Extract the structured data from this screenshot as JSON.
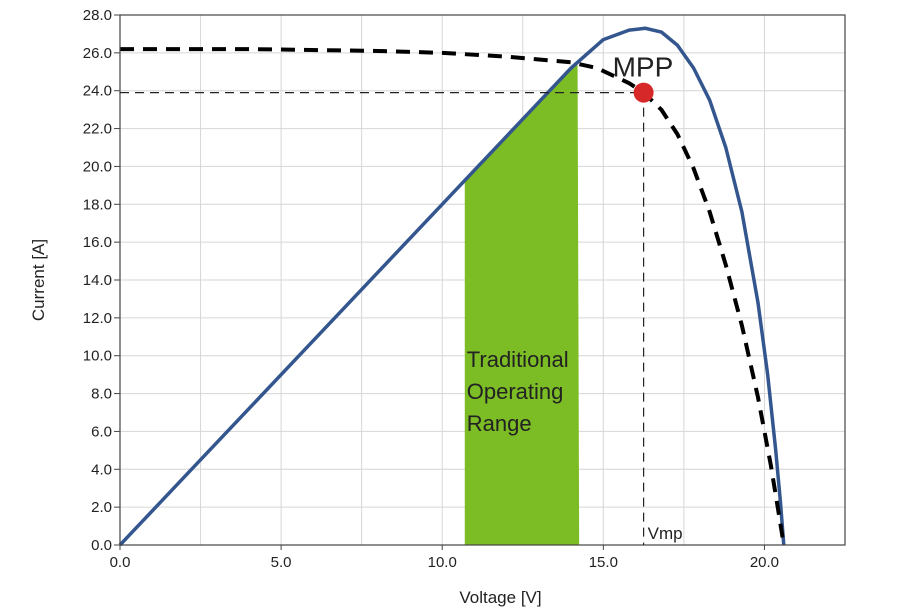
{
  "chart_data": {
    "type": "line",
    "title": "",
    "xlabel": "Voltage [V]",
    "ylabel": "Current [A]",
    "xlim": [
      0,
      22.5
    ],
    "ylim": [
      0,
      28
    ],
    "grid": true,
    "x_ticks": [
      {
        "value": 0,
        "label": "0.0"
      },
      {
        "value": 5,
        "label": "5.0"
      },
      {
        "value": 10,
        "label": "10.0"
      },
      {
        "value": 15,
        "label": "15.0"
      },
      {
        "value": 20,
        "label": "20.0"
      }
    ],
    "y_ticks": [
      {
        "value": 0,
        "label": "0.0"
      },
      {
        "value": 2,
        "label": "2.0"
      },
      {
        "value": 4,
        "label": "4.0"
      },
      {
        "value": 6,
        "label": "6.0"
      },
      {
        "value": 8,
        "label": "8.0"
      },
      {
        "value": 10,
        "label": "10.0"
      },
      {
        "value": 12,
        "label": "12.0"
      },
      {
        "value": 14,
        "label": "14.0"
      },
      {
        "value": 16,
        "label": "16.0"
      },
      {
        "value": 18,
        "label": "18.0"
      },
      {
        "value": 20,
        "label": "20.0"
      },
      {
        "value": 22,
        "label": "22.0"
      },
      {
        "value": 24,
        "label": "24.0"
      },
      {
        "value": 26,
        "label": "26.0"
      },
      {
        "value": 28,
        "label": "28.0"
      }
    ],
    "series": [
      {
        "style": "solid",
        "color": "#34568f",
        "points": [
          [
            0,
            0
          ],
          [
            2,
            3.6
          ],
          [
            4,
            7.2
          ],
          [
            6,
            10.8
          ],
          [
            8,
            14.4
          ],
          [
            10,
            18
          ],
          [
            11,
            19.8
          ],
          [
            12,
            21.6
          ],
          [
            13,
            23.4
          ],
          [
            14,
            25.2
          ],
          [
            15,
            26.7
          ],
          [
            15.8,
            27.2
          ],
          [
            16.3,
            27.3
          ],
          [
            16.8,
            27.1
          ],
          [
            17.3,
            26.4
          ],
          [
            17.8,
            25.2
          ],
          [
            18.3,
            23.5
          ],
          [
            18.8,
            21
          ],
          [
            19.3,
            17.6
          ],
          [
            19.8,
            12.8
          ],
          [
            20.1,
            9
          ],
          [
            20.35,
            5
          ],
          [
            20.5,
            2.2
          ],
          [
            20.6,
            0
          ]
        ]
      },
      {
        "style": "dashed",
        "color": "#000000",
        "points": [
          [
            0,
            26.2
          ],
          [
            4,
            26.2
          ],
          [
            8,
            26.1
          ],
          [
            10,
            26.0
          ],
          [
            12,
            25.8
          ],
          [
            13,
            25.65
          ],
          [
            14,
            25.5
          ],
          [
            14.8,
            25.2
          ],
          [
            15.3,
            24.8
          ],
          [
            15.8,
            24.4
          ],
          [
            16.25,
            23.9
          ],
          [
            16.8,
            23
          ],
          [
            17.3,
            21.7
          ],
          [
            17.8,
            19.9
          ],
          [
            18.3,
            17.6
          ],
          [
            18.8,
            14.8
          ],
          [
            19.3,
            11.6
          ],
          [
            19.8,
            7.8
          ],
          [
            20.2,
            4.2
          ],
          [
            20.45,
            1.6
          ],
          [
            20.6,
            0
          ]
        ]
      }
    ],
    "shaded_region": {
      "x_start": 10.7,
      "x_end": 14.25,
      "color": "#7cbc25",
      "label_lines": [
        "Traditional",
        "Operating",
        "Range"
      ]
    },
    "mpp": {
      "label": "MPP",
      "x": 16.25,
      "y": 23.9,
      "color": "#d62828"
    },
    "vmp_label": "Vmp"
  }
}
